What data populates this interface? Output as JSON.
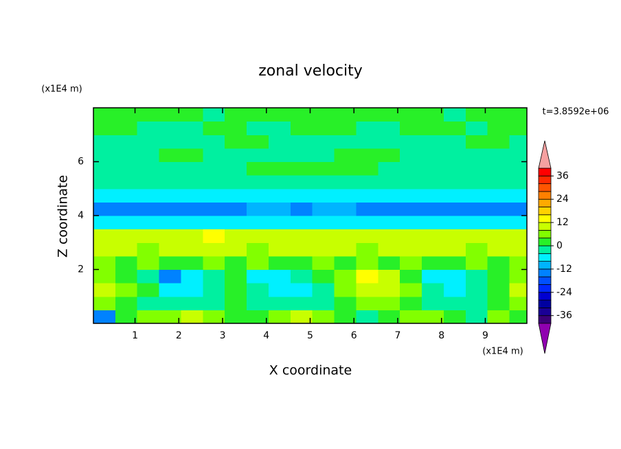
{
  "chart_data": {
    "type": "contour",
    "title": "zonal velocity",
    "xlabel": "X coordinate",
    "ylabel": "Z coordinate",
    "x_unit": "(x1E4 m)",
    "y_unit": "(x1E4 m)",
    "annotation": "t=3.8592e+06",
    "xlim": [
      0.05,
      9.95
    ],
    "ylim": [
      0,
      8
    ],
    "xticks": [
      1,
      2,
      3,
      4,
      5,
      6,
      7,
      8,
      9
    ],
    "yticks": [
      2,
      4,
      6
    ],
    "x": [
      0.3,
      0.8,
      1.3,
      1.8,
      2.3,
      2.8,
      3.3,
      3.8,
      4.3,
      4.8,
      5.3,
      5.8,
      6.3,
      6.8,
      7.3,
      7.8,
      8.3,
      8.8,
      9.3,
      9.8
    ],
    "y": [
      0.25,
      0.75,
      1.25,
      1.75,
      2.25,
      2.75,
      3.25,
      3.75,
      4.25,
      4.75,
      5.25,
      5.75,
      6.25,
      6.75,
      7.25,
      7.75
    ],
    "z": [
      [
        -14,
        2,
        6,
        6,
        10,
        6,
        2,
        2,
        6,
        10,
        6,
        2,
        -2,
        2,
        6,
        6,
        2,
        -2,
        6,
        2
      ],
      [
        6,
        2,
        -2,
        -2,
        -2,
        -2,
        2,
        -2,
        -2,
        -2,
        -2,
        2,
        6,
        6,
        2,
        -2,
        -2,
        -2,
        2,
        6
      ],
      [
        10,
        6,
        2,
        -6,
        -6,
        -2,
        2,
        -2,
        -6,
        -6,
        -2,
        6,
        10,
        10,
        6,
        -2,
        -6,
        -2,
        2,
        10
      ],
      [
        6,
        2,
        -2,
        -14,
        -6,
        -2,
        2,
        -6,
        -6,
        -2,
        2,
        6,
        14,
        10,
        2,
        -6,
        -6,
        -2,
        2,
        6
      ],
      [
        6,
        2,
        6,
        2,
        2,
        6,
        2,
        6,
        2,
        2,
        6,
        2,
        6,
        2,
        6,
        2,
        2,
        6,
        2,
        6
      ],
      [
        10,
        10,
        6,
        10,
        10,
        10,
        10,
        6,
        10,
        10,
        10,
        10,
        6,
        10,
        10,
        10,
        10,
        6,
        10,
        10
      ],
      [
        10,
        10,
        10,
        10,
        10,
        14,
        10,
        10,
        10,
        10,
        10,
        10,
        10,
        10,
        10,
        10,
        10,
        10,
        10,
        10
      ],
      [
        -6,
        -6,
        -6,
        -6,
        -6,
        -6,
        -6,
        -6,
        -6,
        -6,
        -6,
        -6,
        -6,
        -6,
        -6,
        -6,
        -6,
        -6,
        -6,
        -6
      ],
      [
        -14,
        -14,
        -14,
        -14,
        -14,
        -14,
        -14,
        -10,
        -10,
        -14,
        -10,
        -10,
        -14,
        -14,
        -14,
        -14,
        -14,
        -14,
        -14,
        -14
      ],
      [
        -6,
        -6,
        -6,
        -6,
        -6,
        -6,
        -6,
        -6,
        -6,
        -6,
        -6,
        -6,
        -6,
        -6,
        -6,
        -6,
        -6,
        -6,
        -6,
        -6
      ],
      [
        -2,
        -2,
        -2,
        -2,
        -2,
        -2,
        -2,
        -2,
        -2,
        -2,
        -2,
        -2,
        -2,
        -2,
        -2,
        -2,
        -2,
        -2,
        -2,
        -2
      ],
      [
        -2,
        -2,
        -2,
        -2,
        -2,
        -2,
        -2,
        2,
        2,
        2,
        2,
        2,
        2,
        -2,
        -2,
        -2,
        -2,
        -2,
        -2,
        -2
      ],
      [
        -2,
        -2,
        -2,
        2,
        2,
        -2,
        -2,
        -2,
        -2,
        -2,
        -2,
        2,
        2,
        2,
        -2,
        -2,
        -2,
        -2,
        -2,
        -2
      ],
      [
        -2,
        -2,
        -2,
        -2,
        -2,
        -2,
        2,
        2,
        -2,
        -2,
        -2,
        -2,
        -2,
        -2,
        -2,
        -2,
        -2,
        2,
        2,
        -2
      ],
      [
        2,
        2,
        -2,
        -2,
        -2,
        2,
        2,
        -2,
        -2,
        2,
        2,
        2,
        -2,
        -2,
        2,
        2,
        2,
        -2,
        2,
        2
      ],
      [
        2,
        2,
        2,
        2,
        2,
        -2,
        2,
        2,
        2,
        2,
        2,
        2,
        2,
        2,
        2,
        2,
        -2,
        2,
        2,
        2
      ]
    ],
    "levels": [
      -40,
      -36,
      -32,
      -28,
      -24,
      -20,
      -16,
      -12,
      -8,
      -4,
      0,
      4,
      8,
      12,
      16,
      20,
      24,
      28,
      32,
      36,
      40
    ],
    "colors": [
      "#9000b0",
      "#3c0078",
      "#1a0096",
      "#0000a0",
      "#0000d2",
      "#0028ff",
      "#0050ff",
      "#0082ff",
      "#00b4ff",
      "#00f0ff",
      "#00f0a0",
      "#28f028",
      "#82ff00",
      "#c8ff00",
      "#ffff00",
      "#ffd200",
      "#ffaa00",
      "#ff8000",
      "#ff5500",
      "#ff2a00",
      "#ff0000",
      "#f5a0a0"
    ],
    "colorbar_ticks": [
      -36,
      -24,
      -12,
      0,
      12,
      24,
      36
    ]
  }
}
